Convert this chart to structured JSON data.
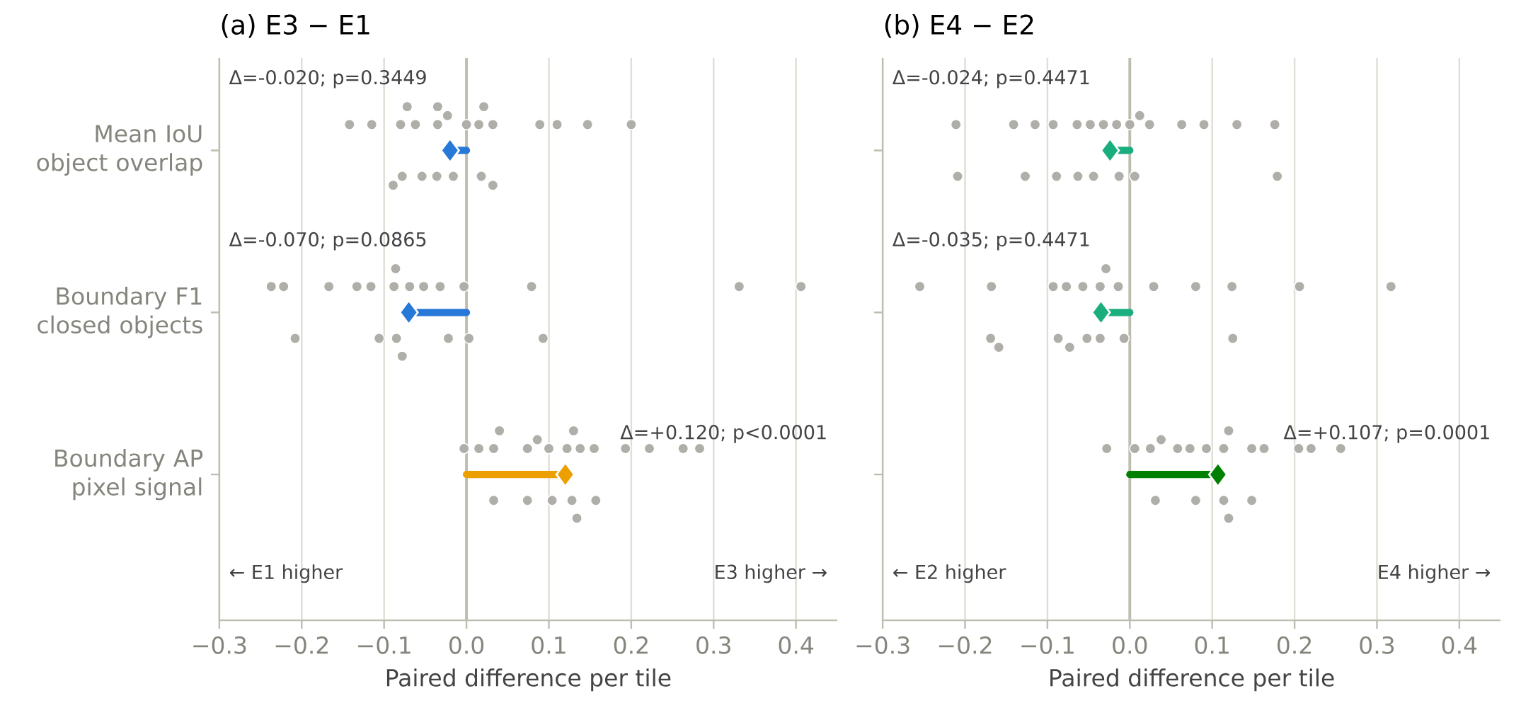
{
  "chart_data": [
    {
      "type": "lollipop",
      "orientation": "horizontal",
      "title": "(a) E3 − E1",
      "xlabel": "Paired difference per tile",
      "categories": [
        "Mean IoU object overlap",
        "Boundary F1 closed objects",
        "Boundary AP pixel signal"
      ],
      "xlim": [
        -0.3,
        0.45
      ],
      "xticks": [
        {
          "value": -0.3,
          "label": "−0.3"
        },
        {
          "value": -0.2,
          "label": "−0.2"
        },
        {
          "value": -0.1,
          "label": "−0.1"
        },
        {
          "value": 0,
          "label": "0.0"
        },
        0.1,
        0.2,
        0.3,
        0.4
      ],
      "grid": "x",
      "ref_lines": [
        {
          "axis": "x",
          "value": 0,
          "color": "#bdbdb0"
        }
      ],
      "annotations": [
        "Δ=-0.020; p=0.3449",
        "Δ=-0.070; p=0.0865",
        "Δ=+0.120; p<0.0001",
        "← E1 higher",
        "E3 higher →"
      ],
      "series": [
        {
          "type": "scatter",
          "marker": "circle",
          "color": "#b0aea8",
          "x": [
            "Mean IoU object overlap",
            "Mean IoU object overlap",
            "Mean IoU object overlap",
            "Mean IoU object overlap",
            "Mean IoU object overlap",
            "Mean IoU object overlap",
            "Mean IoU object overlap",
            "Mean IoU object overlap",
            "Mean IoU object overlap",
            "Mean IoU object overlap",
            "Mean IoU object overlap",
            "Mean IoU object overlap",
            "Mean IoU object overlap",
            "Mean IoU object overlap",
            "Mean IoU object overlap",
            "Mean IoU object overlap",
            "Mean IoU object overlap",
            "Mean IoU object overlap",
            "Mean IoU object overlap",
            "Mean IoU object overlap",
            "Mean IoU object overlap",
            "Mean IoU object overlap",
            "Mean IoU object overlap",
            "Boundary F1 closed objects",
            "Boundary F1 closed objects",
            "Boundary F1 closed objects",
            "Boundary F1 closed objects",
            "Boundary F1 closed objects",
            "Boundary F1 closed objects",
            "Boundary F1 closed objects",
            "Boundary F1 closed objects",
            "Boundary F1 closed objects",
            "Boundary F1 closed objects",
            "Boundary F1 closed objects",
            "Boundary F1 closed objects",
            "Boundary F1 closed objects",
            "Boundary F1 closed objects",
            "Boundary F1 closed objects",
            "Boundary F1 closed objects",
            "Boundary F1 closed objects",
            "Boundary F1 closed objects",
            "Boundary F1 closed objects",
            "Boundary F1 closed objects",
            "Boundary F1 closed objects",
            "Boundary AP pixel signal",
            "Boundary AP pixel signal",
            "Boundary AP pixel signal",
            "Boundary AP pixel signal",
            "Boundary AP pixel signal",
            "Boundary AP pixel signal",
            "Boundary AP pixel signal",
            "Boundary AP pixel signal",
            "Boundary AP pixel signal",
            "Boundary AP pixel signal",
            "Boundary AP pixel signal",
            "Boundary AP pixel signal",
            "Boundary AP pixel signal",
            "Boundary AP pixel signal",
            "Boundary AP pixel signal",
            "Boundary AP pixel signal",
            "Boundary AP pixel signal",
            "Boundary AP pixel signal",
            "Boundary AP pixel signal",
            "Boundary AP pixel signal",
            "Boundary AP pixel signal"
          ],
          "values": [
            -0.115,
            -0.142,
            -0.08,
            -0.078,
            -0.089,
            -0.072,
            -0.062,
            -0.054,
            -0.035,
            -0.036,
            -0.035,
            -0.023,
            -0.016,
            0.0,
            0.015,
            0.018,
            0.032,
            0.032,
            0.021,
            0.089,
            0.11,
            0.147,
            0.2,
            -0.237,
            -0.222,
            -0.208,
            -0.167,
            -0.133,
            -0.116,
            -0.106,
            -0.088,
            -0.085,
            -0.086,
            -0.078,
            -0.069,
            -0.052,
            -0.032,
            -0.022,
            -0.003,
            0.003,
            0.079,
            0.093,
            0.331,
            0.406,
            -0.003,
            0.015,
            0.033,
            0.033,
            0.04,
            0.074,
            0.074,
            0.086,
            0.1,
            0.104,
            0.122,
            0.128,
            0.13,
            0.134,
            0.138,
            0.155,
            0.157,
            0.193,
            0.222,
            0.263,
            0.283
          ]
        },
        {
          "marker": "diamond",
          "colors": [
            "#2878d8",
            "#2878d8",
            "#ee9f00"
          ],
          "values": [
            -0.02,
            -0.07,
            0.12
          ]
        }
      ]
    },
    {
      "type": "lollipop",
      "orientation": "horizontal",
      "title": "(b) E4 − E2",
      "xlabel": "Paired difference per tile",
      "categories": [
        "Mean IoU object overlap",
        "Boundary F1 closed objects",
        "Boundary AP pixel signal"
      ],
      "tick_labels": "x",
      "xlim": [
        -0.3,
        0.45
      ],
      "xticks": [
        {
          "value": -0.3,
          "label": "−0.3"
        },
        {
          "value": -0.2,
          "label": "−0.2"
        },
        {
          "value": -0.1,
          "label": "−0.1"
        },
        {
          "value": 0,
          "label": "0.0"
        },
        0.1,
        0.2,
        0.3,
        0.4
      ],
      "grid": "x",
      "ref_lines": [
        {
          "axis": "x",
          "value": 0,
          "color": "#bdbdb0"
        }
      ],
      "annotations": [
        "Δ=-0.024; p=0.4471",
        "Δ=-0.035; p=0.4471",
        "Δ=+0.107; p=0.0001",
        "← E2 higher",
        "E4 higher →"
      ],
      "series": [
        {
          "type": "scatter",
          "marker": "circle",
          "color": "#b0aea8",
          "x": [
            "Mean IoU object overlap",
            "Mean IoU object overlap",
            "Mean IoU object overlap",
            "Mean IoU object overlap",
            "Mean IoU object overlap",
            "Mean IoU object overlap",
            "Mean IoU object overlap",
            "Mean IoU object overlap",
            "Mean IoU object overlap",
            "Mean IoU object overlap",
            "Mean IoU object overlap",
            "Mean IoU object overlap",
            "Mean IoU object overlap",
            "Mean IoU object overlap",
            "Mean IoU object overlap",
            "Mean IoU object overlap",
            "Mean IoU object overlap",
            "Mean IoU object overlap",
            "Mean IoU object overlap",
            "Mean IoU object overlap",
            "Mean IoU object overlap",
            "Mean IoU object overlap",
            "Mean IoU object overlap",
            "Boundary F1 closed objects",
            "Boundary F1 closed objects",
            "Boundary F1 closed objects",
            "Boundary F1 closed objects",
            "Boundary F1 closed objects",
            "Boundary F1 closed objects",
            "Boundary F1 closed objects",
            "Boundary F1 closed objects",
            "Boundary F1 closed objects",
            "Boundary F1 closed objects",
            "Boundary F1 closed objects",
            "Boundary F1 closed objects",
            "Boundary F1 closed objects",
            "Boundary F1 closed objects",
            "Boundary F1 closed objects",
            "Boundary F1 closed objects",
            "Boundary F1 closed objects",
            "Boundary F1 closed objects",
            "Boundary F1 closed objects",
            "Boundary F1 closed objects",
            "Boundary F1 closed objects",
            "Boundary AP pixel signal",
            "Boundary AP pixel signal",
            "Boundary AP pixel signal",
            "Boundary AP pixel signal",
            "Boundary AP pixel signal",
            "Boundary AP pixel signal",
            "Boundary AP pixel signal",
            "Boundary AP pixel signal",
            "Boundary AP pixel signal",
            "Boundary AP pixel signal",
            "Boundary AP pixel signal",
            "Boundary AP pixel signal",
            "Boundary AP pixel signal",
            "Boundary AP pixel signal",
            "Boundary AP pixel signal",
            "Boundary AP pixel signal",
            "Boundary AP pixel signal",
            "Boundary AP pixel signal",
            "Boundary AP pixel signal"
          ],
          "values": [
            -0.211,
            -0.209,
            -0.141,
            -0.127,
            -0.115,
            -0.093,
            -0.089,
            -0.064,
            -0.063,
            -0.048,
            -0.044,
            -0.032,
            -0.016,
            -0.013,
            0.0,
            0.006,
            0.012,
            0.024,
            0.063,
            0.09,
            0.13,
            0.176,
            0.179,
            -0.255,
            -0.168,
            -0.169,
            -0.159,
            -0.093,
            -0.087,
            -0.077,
            -0.073,
            -0.057,
            -0.052,
            -0.036,
            -0.036,
            -0.029,
            -0.014,
            -0.007,
            0.029,
            0.08,
            0.124,
            0.125,
            0.206,
            0.317,
            -0.028,
            0.006,
            0.025,
            0.031,
            0.038,
            0.058,
            0.073,
            0.08,
            0.093,
            0.114,
            0.114,
            0.12,
            0.12,
            0.148,
            0.148,
            0.163,
            0.205,
            0.22,
            0.256
          ]
        },
        {
          "marker": "diamond",
          "colors": [
            "#1aae7e",
            "#1aae7e",
            "#008000"
          ],
          "values": [
            -0.024,
            -0.035,
            0.107
          ]
        }
      ]
    }
  ]
}
